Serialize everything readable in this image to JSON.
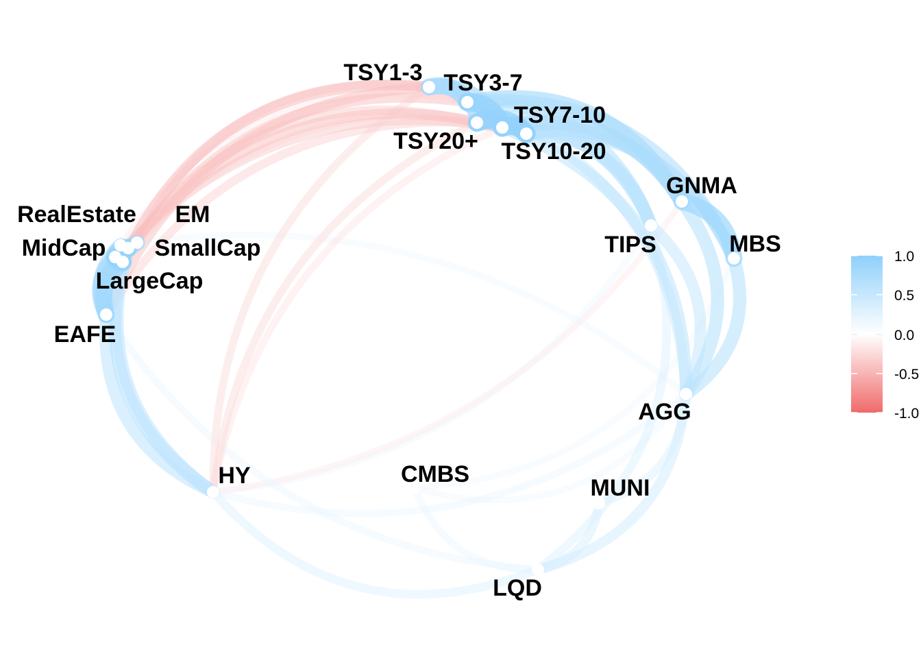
{
  "chart_data": {
    "type": "network",
    "nodes": [
      {
        "id": "TSY1-3",
        "label": "TSY1-3"
      },
      {
        "id": "TSY3-7",
        "label": "TSY3-7"
      },
      {
        "id": "TSY7-10",
        "label": "TSY7-10"
      },
      {
        "id": "TSY10-20",
        "label": "TSY10-20"
      },
      {
        "id": "TSY20+",
        "label": "TSY20+"
      },
      {
        "id": "GNMA",
        "label": "GNMA"
      },
      {
        "id": "TIPS",
        "label": "TIPS"
      },
      {
        "id": "MBS",
        "label": "MBS"
      },
      {
        "id": "AGG",
        "label": "AGG"
      },
      {
        "id": "MUNI",
        "label": "MUNI"
      },
      {
        "id": "LQD",
        "label": "LQD"
      },
      {
        "id": "CMBS",
        "label": "CMBS"
      },
      {
        "id": "HY",
        "label": "HY"
      },
      {
        "id": "EAFE",
        "label": "EAFE"
      },
      {
        "id": "LargeCap",
        "label": "LargeCap"
      },
      {
        "id": "MidCap",
        "label": "MidCap"
      },
      {
        "id": "SmallCap",
        "label": "SmallCap"
      },
      {
        "id": "RealEstate",
        "label": "RealEstate"
      },
      {
        "id": "EM",
        "label": "EM"
      }
    ],
    "edges": [
      {
        "source": "TSY1-3",
        "target": "TSY3-7",
        "value": 0.85
      },
      {
        "source": "TSY3-7",
        "target": "TSY7-10",
        "value": 0.95
      },
      {
        "source": "TSY7-10",
        "target": "TSY10-20",
        "value": 0.97
      },
      {
        "source": "TSY10-20",
        "target": "TSY20+",
        "value": 0.95
      },
      {
        "source": "TSY3-7",
        "target": "TSY20+",
        "value": 0.85
      },
      {
        "source": "TSY7-10",
        "target": "TSY20+",
        "value": 0.9
      },
      {
        "source": "TSY1-3",
        "target": "TSY7-10",
        "value": 0.75
      },
      {
        "source": "TSY3-7",
        "target": "GNMA",
        "value": 0.75
      },
      {
        "source": "TSY7-10",
        "target": "GNMA",
        "value": 0.7
      },
      {
        "source": "TSY10-20",
        "target": "GNMA",
        "value": 0.65
      },
      {
        "source": "TSY20+",
        "target": "GNMA",
        "value": 0.55
      },
      {
        "source": "TSY3-7",
        "target": "MBS",
        "value": 0.65
      },
      {
        "source": "TSY7-10",
        "target": "MBS",
        "value": 0.6
      },
      {
        "source": "TSY10-20",
        "target": "MBS",
        "value": 0.55
      },
      {
        "source": "GNMA",
        "target": "MBS",
        "value": 0.85
      },
      {
        "source": "TSY3-7",
        "target": "TIPS",
        "value": 0.6
      },
      {
        "source": "TSY7-10",
        "target": "TIPS",
        "value": 0.6
      },
      {
        "source": "TSY10-20",
        "target": "TIPS",
        "value": 0.55
      },
      {
        "source": "TSY20+",
        "target": "TIPS",
        "value": 0.5
      },
      {
        "source": "TIPS",
        "target": "AGG",
        "value": 0.5
      },
      {
        "source": "GNMA",
        "target": "AGG",
        "value": 0.6
      },
      {
        "source": "MBS",
        "target": "AGG",
        "value": 0.6
      },
      {
        "source": "TSY7-10",
        "target": "AGG",
        "value": 0.55
      },
      {
        "source": "TSY3-7",
        "target": "AGG",
        "value": 0.45
      },
      {
        "source": "AGG",
        "target": "LQD",
        "value": 0.4
      },
      {
        "source": "AGG",
        "target": "MUNI",
        "value": 0.3
      },
      {
        "source": "MUNI",
        "target": "LQD",
        "value": 0.35
      },
      {
        "source": "TIPS",
        "target": "LQD",
        "value": 0.3
      },
      {
        "source": "LQD",
        "target": "HY",
        "value": 0.3
      },
      {
        "source": "CMBS",
        "target": "LQD",
        "value": 0.2
      },
      {
        "source": "CMBS",
        "target": "AGG",
        "value": 0.15
      },
      {
        "source": "TIPS",
        "target": "HY",
        "value": 0.15
      },
      {
        "source": "MBS",
        "target": "CMBS",
        "value": 0.15
      },
      {
        "source": "LargeCap",
        "target": "MidCap",
        "value": 0.95
      },
      {
        "source": "LargeCap",
        "target": "SmallCap",
        "value": 0.9
      },
      {
        "source": "MidCap",
        "target": "SmallCap",
        "value": 0.95
      },
      {
        "source": "LargeCap",
        "target": "EAFE",
        "value": 0.85
      },
      {
        "source": "MidCap",
        "target": "EAFE",
        "value": 0.8
      },
      {
        "source": "EM",
        "target": "EAFE",
        "value": 0.8
      },
      {
        "source": "RealEstate",
        "target": "EAFE",
        "value": 0.7
      },
      {
        "source": "LargeCap",
        "target": "HY",
        "value": 0.6
      },
      {
        "source": "SmallCap",
        "target": "HY",
        "value": 0.55
      },
      {
        "source": "EAFE",
        "target": "HY",
        "value": 0.55
      },
      {
        "source": "HY",
        "target": "AGG",
        "value": 0.2
      },
      {
        "source": "EAFE",
        "target": "LQD",
        "value": 0.2
      },
      {
        "source": "EM",
        "target": "AGG",
        "value": 0.15
      },
      {
        "source": "TSY1-3",
        "target": "LargeCap",
        "value": -0.45
      },
      {
        "source": "TSY3-7",
        "target": "LargeCap",
        "value": -0.4
      },
      {
        "source": "TSY7-10",
        "target": "SmallCap",
        "value": -0.4
      },
      {
        "source": "TSY10-20",
        "target": "MidCap",
        "value": -0.35
      },
      {
        "source": "TSY20+",
        "target": "SmallCap",
        "value": -0.35
      },
      {
        "source": "TSY1-3",
        "target": "EAFE",
        "value": -0.4
      },
      {
        "source": "TSY20+",
        "target": "EAFE",
        "value": -0.3
      },
      {
        "source": "TSY1-3",
        "target": "EM",
        "value": -0.3
      },
      {
        "source": "TSY1-3",
        "target": "HY",
        "value": -0.25
      },
      {
        "source": "TSY20+",
        "target": "HY",
        "value": -0.25
      },
      {
        "source": "TSY7-10",
        "target": "HY",
        "value": -0.2
      },
      {
        "source": "GNMA",
        "target": "HY",
        "value": -0.15
      },
      {
        "source": "TSY10-20",
        "target": "EM",
        "value": -0.2
      },
      {
        "source": "TSY3-7",
        "target": "RealEstate",
        "value": -0.15
      }
    ],
    "legend": {
      "position": "right",
      "ticks": [
        "1.0",
        "0.5",
        "0.0",
        "-0.5",
        "-1.0"
      ],
      "range": [
        -1.0,
        1.0
      ],
      "colors": {
        "negative": "#f06a6a",
        "zero": "#ffffff",
        "positive": "#8fd0fb"
      }
    }
  }
}
